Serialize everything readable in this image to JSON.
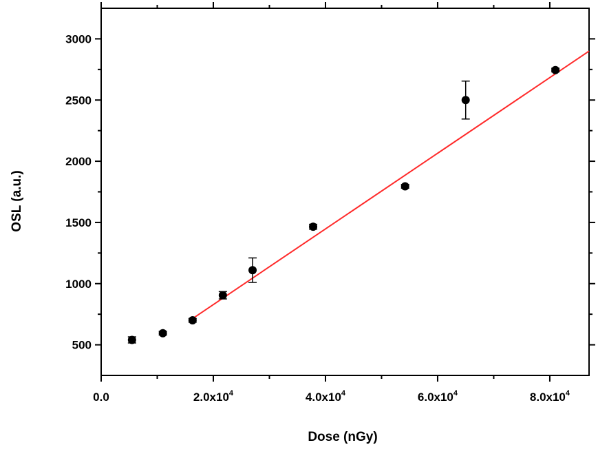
{
  "chart_data": {
    "type": "scatter",
    "title": "",
    "xlabel": "Dose (nGy)",
    "ylabel": "OSL (a.u.)",
    "xlim": [
      0,
      87000
    ],
    "ylim": [
      250,
      3250
    ],
    "grid": false,
    "legend": "none",
    "x_ticks": [
      {
        "value": 0,
        "mantissa": "0.0",
        "exponent": ""
      },
      {
        "value": 20000,
        "mantissa": "2.0x10",
        "exponent": "4"
      },
      {
        "value": 40000,
        "mantissa": "4.0x10",
        "exponent": "4"
      },
      {
        "value": 60000,
        "mantissa": "6.0x10",
        "exponent": "4"
      },
      {
        "value": 80000,
        "mantissa": "8.0x10",
        "exponent": "4"
      }
    ],
    "y_ticks": [
      {
        "value": 500,
        "label": "500"
      },
      {
        "value": 1000,
        "label": "1000"
      },
      {
        "value": 1500,
        "label": "1500"
      },
      {
        "value": 2000,
        "label": "2000"
      },
      {
        "value": 2500,
        "label": "2500"
      },
      {
        "value": 3000,
        "label": "3000"
      }
    ],
    "series": [
      {
        "marker_color": "#000000",
        "points": [
          {
            "x": 5500,
            "y": 540,
            "err": 25
          },
          {
            "x": 11000,
            "y": 595,
            "err": 15
          },
          {
            "x": 16300,
            "y": 700,
            "err": 15
          },
          {
            "x": 21700,
            "y": 905,
            "err": 30
          },
          {
            "x": 27000,
            "y": 1110,
            "err": 100
          },
          {
            "x": 37800,
            "y": 1465,
            "err": 20
          },
          {
            "x": 54200,
            "y": 1795,
            "err": 15
          },
          {
            "x": 65000,
            "y": 2500,
            "err": 155
          },
          {
            "x": 81000,
            "y": 2745,
            "err": 15
          }
        ]
      }
    ],
    "fit_line": {
      "color": "#ff2a2a",
      "x_start": 16000,
      "y_start": 705,
      "x_end": 87000,
      "y_end": 2900
    }
  }
}
